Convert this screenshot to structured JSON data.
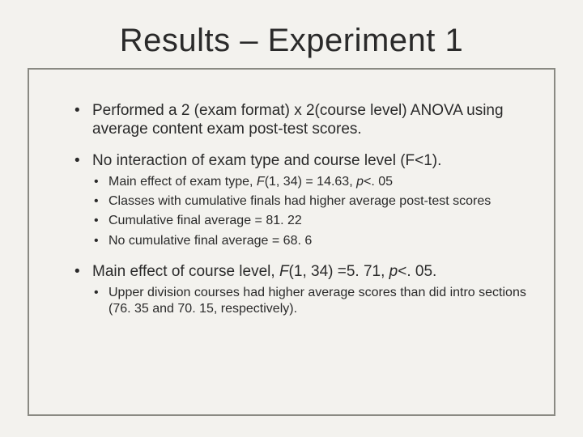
{
  "title": "Results – Experiment 1",
  "bullets": {
    "b1": "Performed a 2 (exam format) x 2(course level) ANOVA using average content exam post-test scores.",
    "b2": "No interaction of exam type and course level (F<1).",
    "b2_sub": {
      "s1_pre": "Main effect of exam type, ",
      "s1_stat": "F",
      "s1_mid": "(1, 34) = 14.63, ",
      "s1_p": "p",
      "s1_post": "<. 05",
      "s2": "Classes with cumulative finals had higher average post-test scores",
      "s3": "Cumulative final average = 81. 22",
      "s4": "No cumulative final average = 68. 6"
    },
    "b3_pre": "Main effect of course level, ",
    "b3_stat": "F",
    "b3_mid": "(1, 34) =5. 71, ",
    "b3_p": "p",
    "b3_post": "<. 05.",
    "b3_sub": {
      "s1": "Upper division courses had higher average scores than did intro sections (76. 35 and 70. 15, respectively)."
    }
  },
  "colors": {
    "background": "#f3f2ee",
    "border": "#8a8a83",
    "text": "#2a2a2a"
  },
  "typography": {
    "title_fontsize": 40,
    "body_fontsize": 19,
    "sub_fontsize": 16,
    "font_family": "Arial"
  }
}
